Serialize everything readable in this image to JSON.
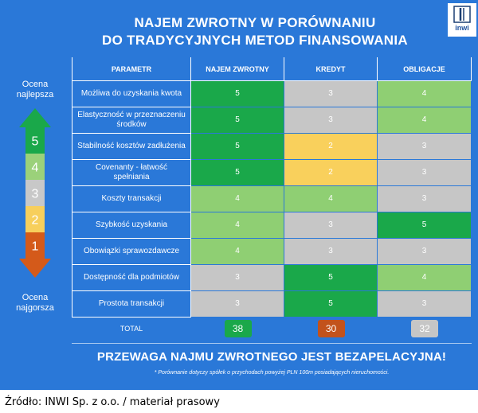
{
  "title": {
    "line1": "NAJEM ZWROTNY W PORÓWNANIU",
    "line2": "DO TRADYCYJNYCH METOD FINANSOWANIA"
  },
  "logo": {
    "text": "inwi",
    "icon": "inwi-logo-icon"
  },
  "scale": {
    "top_label_1": "Ocena",
    "top_label_2": "najlepsza",
    "bottom_label_1": "Ocena",
    "bottom_label_2": "najgorsza",
    "levels": [
      {
        "value": "5",
        "color": "#1aa84a"
      },
      {
        "value": "4",
        "color": "#9bd17a"
      },
      {
        "value": "3",
        "color": "#c8c8c8"
      },
      {
        "value": "2",
        "color": "#f7cf5c"
      },
      {
        "value": "1",
        "color": "#d45a1a"
      }
    ]
  },
  "colors": {
    "5": "#1aa84a",
    "4": "#8fcf73",
    "3": "#c6c6c6",
    "2": "#f9d05c",
    "panel": "#2a78d8"
  },
  "table": {
    "headers": [
      "PARAMETR",
      "NAJEM ZWROTNY",
      "KREDYT",
      "OBLIGACJE"
    ],
    "rows": [
      {
        "param": "Możliwa do uzyskania kwota",
        "values": [
          "5",
          "3",
          "4"
        ]
      },
      {
        "param": "Elastyczność w przeznaczeniu środków",
        "values": [
          "5",
          "3",
          "4"
        ]
      },
      {
        "param": "Stabilność kosztów zadłużenia",
        "values": [
          "5",
          "2",
          "3"
        ]
      },
      {
        "param": "Covenanty - łatwość spełniania",
        "values": [
          "5",
          "2",
          "3"
        ]
      },
      {
        "param": "Koszty transakcji",
        "values": [
          "4",
          "4",
          "3"
        ]
      },
      {
        "param": "Szybkość uzyskania",
        "values": [
          "4",
          "3",
          "5"
        ]
      },
      {
        "param": "Obowiązki sprawozdawcze",
        "values": [
          "4",
          "3",
          "3"
        ]
      },
      {
        "param": "Dostępność dla podmiotów",
        "values": [
          "3",
          "5",
          "4"
        ]
      },
      {
        "param": "Prostota transakcji",
        "values": [
          "3",
          "5",
          "3"
        ]
      }
    ],
    "total_label": "TOTAL",
    "totals": [
      {
        "value": "38",
        "color": "#1aa84a"
      },
      {
        "value": "30",
        "color": "#c2521c"
      },
      {
        "value": "32",
        "color": "#c6c6c6"
      }
    ]
  },
  "headline": "PRZEWAGA NAJMU ZWROTNEGO JEST BEZAPELACYJNA!",
  "note": "* Porównanie dotyczy spółek o przychodach powyżej PLN 100m posiadających nieruchomości.",
  "source": "Źródło: INWI Sp. z o.o. / materiał prasowy"
}
